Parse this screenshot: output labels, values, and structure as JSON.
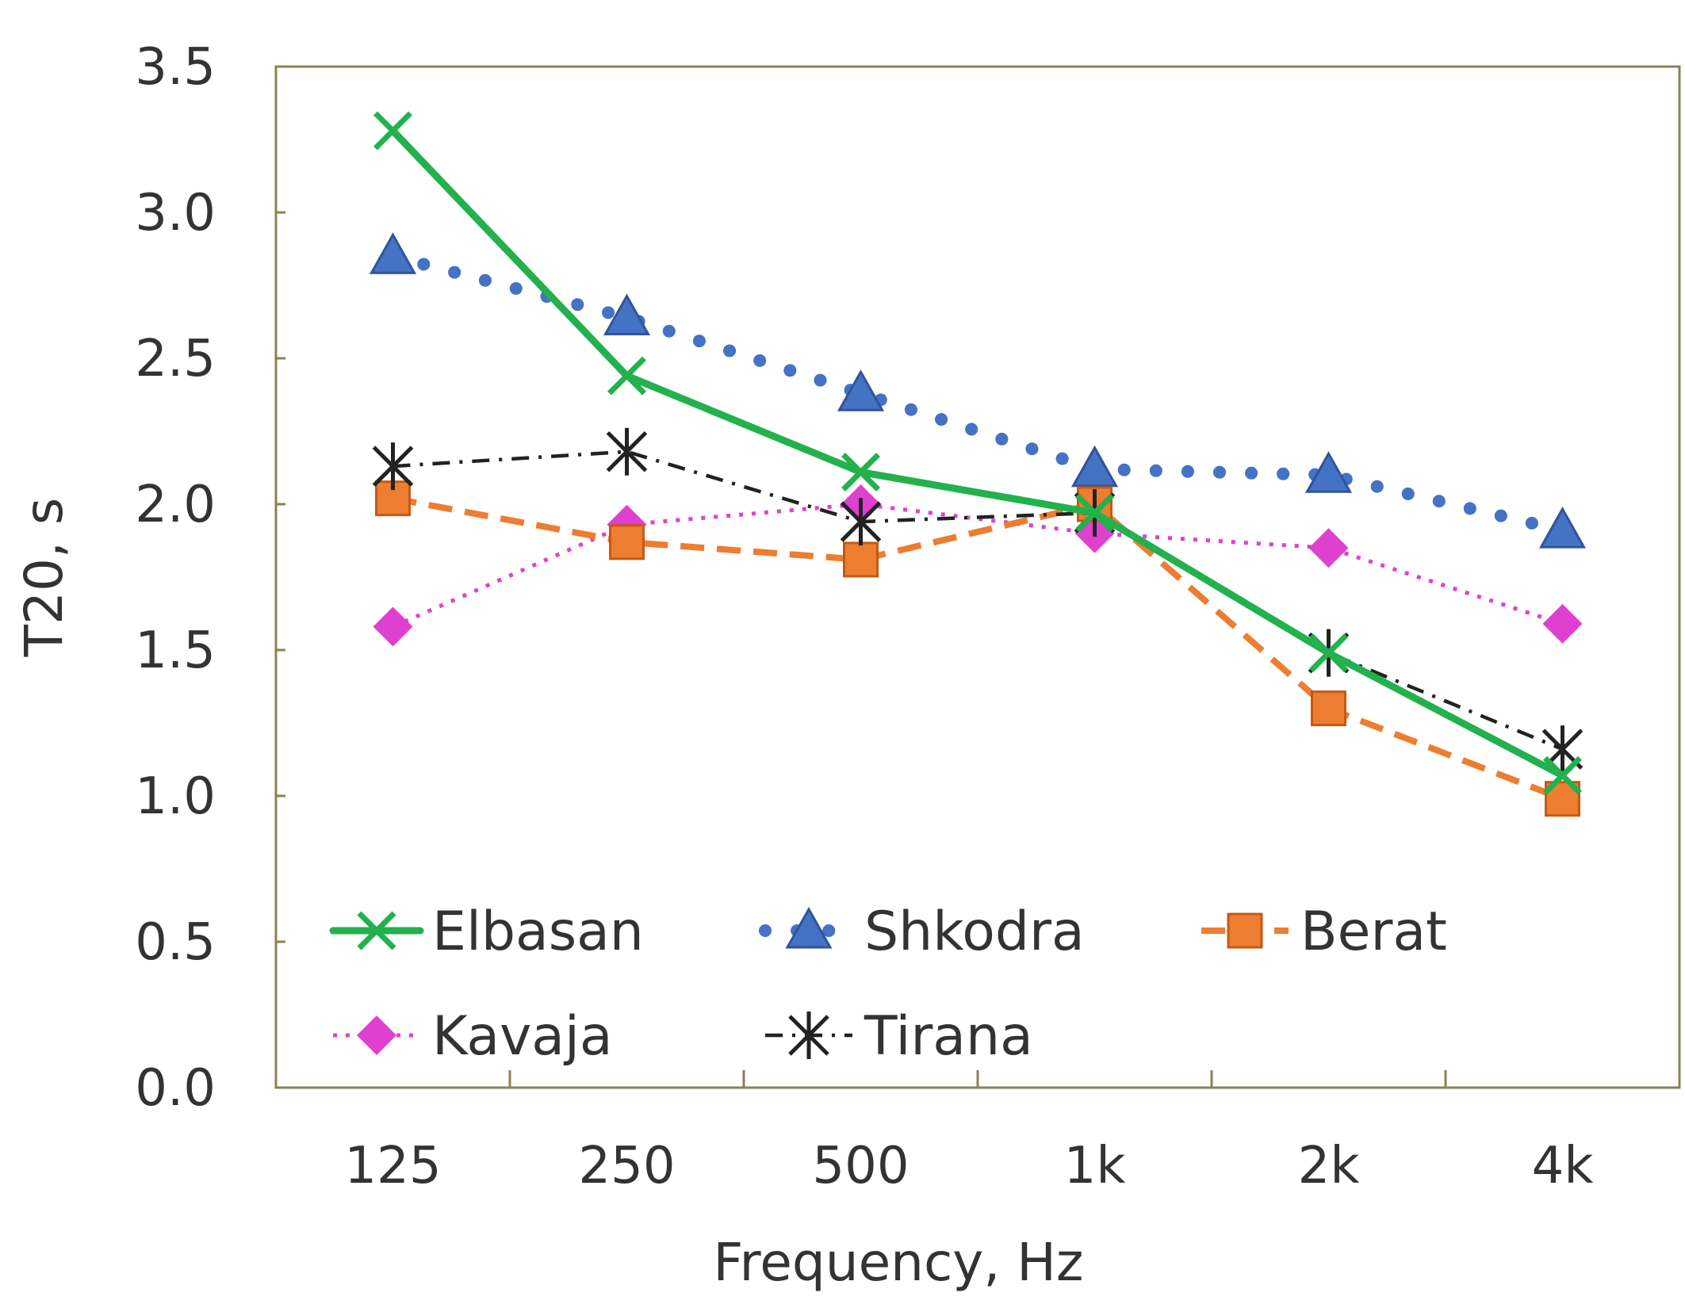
{
  "chart_data": {
    "type": "line",
    "title": "",
    "xlabel": "Frequency, Hz",
    "ylabel": "T20, s",
    "categories": [
      "125",
      "250",
      "500",
      "1k",
      "2k",
      "4k"
    ],
    "ylim": [
      0,
      3.5
    ],
    "yticks": [
      "0.0",
      "0.5",
      "1.0",
      "1.5",
      "2.0",
      "2.5",
      "3.0",
      "3.5"
    ],
    "grid": false,
    "legend_position": "bottom-inside",
    "series": [
      {
        "name": "Elbasan",
        "color": "#22B14C",
        "dash": "solid",
        "marker": "x",
        "values": [
          3.28,
          2.44,
          2.11,
          1.97,
          1.49,
          1.07
        ]
      },
      {
        "name": "Shkodra",
        "color": "#4472C4",
        "dash": "dotted-round",
        "marker": "triangle",
        "values": [
          2.85,
          2.64,
          2.38,
          2.12,
          2.1,
          1.91
        ]
      },
      {
        "name": "Berat",
        "color": "#ED7D31",
        "dash": "dashed",
        "marker": "square",
        "values": [
          2.02,
          1.87,
          1.81,
          2.0,
          1.3,
          0.99
        ]
      },
      {
        "name": "Kavaja",
        "color": "#E040D0",
        "dash": "dotted",
        "marker": "diamond",
        "values": [
          1.58,
          1.93,
          2.0,
          1.9,
          1.85,
          1.59
        ]
      },
      {
        "name": "Tirana",
        "color": "#222222",
        "dash": "dashdot",
        "marker": "asterisk",
        "values": [
          2.13,
          2.18,
          1.94,
          1.97,
          1.49,
          1.16
        ]
      }
    ]
  }
}
